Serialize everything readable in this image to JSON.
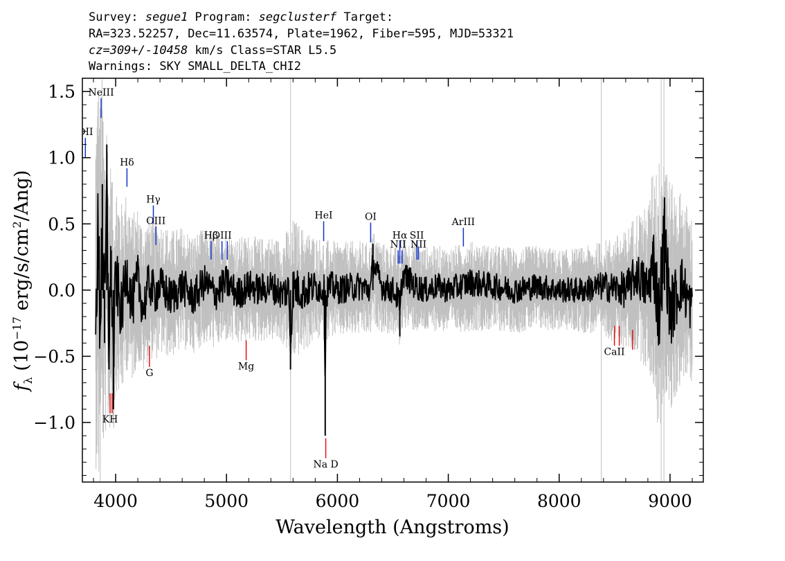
{
  "header": {
    "line1": {
      "survey_label": "Survey: ",
      "survey": "segue1",
      "program_label": " Program: ",
      "program": "segclusterf",
      "target_label": " Target:"
    },
    "line2": "RA=323.52257, Dec=11.63574, Plate=1962, Fiber=595, MJD=53321",
    "line3": {
      "cz": "cz=309+/-10458",
      "rest": " km/s Class=STAR L5.5"
    },
    "line4": "Warnings: SKY SMALL_DELTA_CHI2"
  },
  "colors": {
    "flux": "#000000",
    "error": "#c0c0c0",
    "emission": "#1030c8",
    "absorption": "#e01010",
    "frame": "#000000"
  },
  "chart_data": {
    "type": "line",
    "xlabel": "Wavelength (Angstroms)",
    "ylabel_parts": {
      "f": "f",
      "lambda": "λ",
      "open": " (10",
      "exp": "−17",
      "units": " erg/s/cm",
      "sq": "2",
      "close": "/Ang)"
    },
    "xlim": [
      3700,
      9300
    ],
    "ylim": [
      -1.45,
      1.6
    ],
    "x_ticks": [
      4000,
      5000,
      6000,
      7000,
      8000,
      9000
    ],
    "y_ticks": [
      -1.0,
      -0.5,
      0.0,
      0.5,
      1.0,
      1.5
    ],
    "y_tick_labels": [
      "−1.0",
      "−0.5",
      "0.0",
      "0.5",
      "1.0",
      "1.5"
    ],
    "grid": false,
    "legend": "none",
    "series": [
      {
        "role": "error",
        "x": [
          3820,
          3850,
          3900,
          3950,
          4000,
          4100,
          4200,
          4300,
          4500,
          4700,
          4900,
          5100,
          5300,
          5500,
          5600,
          5800,
          6000,
          6200,
          6400,
          6600,
          6800,
          7000,
          7200,
          7400,
          7600,
          7800,
          8000,
          8200,
          8400,
          8600,
          8800,
          8900,
          9000,
          9100,
          9200
        ],
        "values": [
          0.75,
          0.9,
          0.7,
          0.55,
          0.45,
          0.38,
          0.33,
          0.3,
          0.27,
          0.25,
          0.24,
          0.23,
          0.22,
          0.22,
          0.3,
          0.22,
          0.2,
          0.2,
          0.19,
          0.19,
          0.18,
          0.18,
          0.19,
          0.18,
          0.18,
          0.18,
          0.17,
          0.18,
          0.2,
          0.25,
          0.35,
          0.6,
          0.5,
          0.4,
          0.35
        ]
      },
      {
        "role": "flux",
        "x": [
          3820,
          3840,
          3860,
          3880,
          3900,
          3920,
          3940,
          3960,
          3980,
          4000,
          4050,
          4100,
          4150,
          4200,
          4250,
          4300,
          4350,
          4400,
          4500,
          4600,
          4700,
          4800,
          4900,
          5000,
          5100,
          5200,
          5300,
          5400,
          5500,
          5560,
          5577,
          5600,
          5700,
          5800,
          5880,
          5890,
          5896,
          5910,
          5950,
          6000,
          6100,
          6200,
          6300,
          6320,
          6400,
          6500,
          6550,
          6563,
          6580,
          6600,
          6700,
          6800,
          6900,
          7000,
          7200,
          7400,
          7600,
          7800,
          8000,
          8200,
          8400,
          8600,
          8700,
          8800,
          8850,
          8900,
          8950,
          9000,
          9100,
          9200
        ],
        "values": [
          0.0,
          0.5,
          -0.3,
          0.8,
          -0.4,
          1.1,
          -0.6,
          0.3,
          -0.9,
          0.2,
          -0.3,
          0.25,
          -0.2,
          0.15,
          -0.25,
          0.1,
          -0.05,
          0.05,
          -0.1,
          0.05,
          -0.1,
          0.1,
          -0.05,
          0.1,
          -0.05,
          0.05,
          0.0,
          0.05,
          -0.05,
          0.02,
          -0.6,
          0.03,
          -0.02,
          0.05,
          0.0,
          -1.1,
          -0.2,
          0.02,
          0.05,
          0.0,
          0.03,
          0.05,
          0.0,
          0.35,
          0.05,
          0.0,
          -0.1,
          -0.35,
          0.1,
          0.2,
          0.05,
          0.0,
          0.05,
          0.0,
          0.1,
          0.05,
          0.0,
          0.05,
          0.0,
          0.0,
          0.05,
          0.0,
          0.2,
          0.0,
          0.4,
          -0.3,
          0.7,
          -0.3,
          0.1,
          -0.25
        ]
      }
    ],
    "emission_lines": [
      {
        "label": "OII",
        "wave": 3727,
        "y0": 1.0,
        "y1": 1.15,
        "label_y": 1.17
      },
      {
        "label": "NeIII",
        "wave": 3869,
        "y0": 1.3,
        "y1": 1.45,
        "label_y": 1.47
      },
      {
        "label": "Hδ",
        "wave": 4102,
        "y0": 0.78,
        "y1": 0.92,
        "label_y": 0.94
      },
      {
        "label": "Hγ",
        "wave": 4340,
        "y0": 0.5,
        "y1": 0.64,
        "label_y": 0.66
      },
      {
        "label": "OIII",
        "wave": 4363,
        "y0": 0.34,
        "y1": 0.48,
        "label_y": 0.5
      },
      {
        "label": "Hβ",
        "wave": 4861,
        "y0": 0.23,
        "y1": 0.37,
        "label_y": 0.39
      },
      {
        "label": "OIII",
        "wave": 4959,
        "y0": 0.23,
        "y1": 0.37,
        "label_y": 0.39
      },
      {
        "label": "",
        "wave": 5007,
        "y0": 0.23,
        "y1": 0.37,
        "label_y": 0.39
      },
      {
        "label": "HeI",
        "wave": 5876,
        "y0": 0.37,
        "y1": 0.52,
        "label_y": 0.54
      },
      {
        "label": "OI",
        "wave": 6300,
        "y0": 0.36,
        "y1": 0.51,
        "label_y": 0.53
      },
      {
        "label": "NII",
        "wave": 6548,
        "y0": 0.2,
        "y1": 0.3,
        "label_y": 0.32
      },
      {
        "label": "Hα",
        "wave": 6563,
        "y0": 0.2,
        "y1": 0.37,
        "label_y": 0.39
      },
      {
        "label": "",
        "wave": 6583,
        "y0": 0.2,
        "y1": 0.3,
        "label_y": 0.32
      },
      {
        "label": "SII",
        "wave": 6716,
        "y0": 0.23,
        "y1": 0.37,
        "label_y": 0.39
      },
      {
        "label": "NII",
        "wave": 6731,
        "y0": 0.23,
        "y1": 0.33,
        "label_y": 0.32
      },
      {
        "label": "ArIII",
        "wave": 7136,
        "y0": 0.33,
        "y1": 0.47,
        "label_y": 0.49
      }
    ],
    "absorption_lines": [
      {
        "label": "KH",
        "wave": 3950,
        "y0": -0.78,
        "y1": -0.93,
        "label_y": -1.0
      },
      {
        "label": "",
        "wave": 3968,
        "y0": -0.78,
        "y1": -0.93,
        "label_y": -1.0
      },
      {
        "label": "G",
        "wave": 4305,
        "y0": -0.42,
        "y1": -0.58,
        "label_y": -0.65
      },
      {
        "label": "Mg",
        "wave": 5177,
        "y0": -0.38,
        "y1": -0.53,
        "label_y": -0.6
      },
      {
        "label": "Na D",
        "wave": 5895,
        "y0": -1.12,
        "y1": -1.27,
        "label_y": -1.34
      },
      {
        "label": "CaII",
        "wave": 8498,
        "y0": -0.27,
        "y1": -0.42,
        "label_y": -0.49
      },
      {
        "label": "",
        "wave": 8542,
        "y0": -0.27,
        "y1": -0.42,
        "label_y": -0.49
      },
      {
        "label": "",
        "wave": 8662,
        "y0": -0.3,
        "y1": -0.45,
        "label_y": -0.49
      }
    ]
  }
}
